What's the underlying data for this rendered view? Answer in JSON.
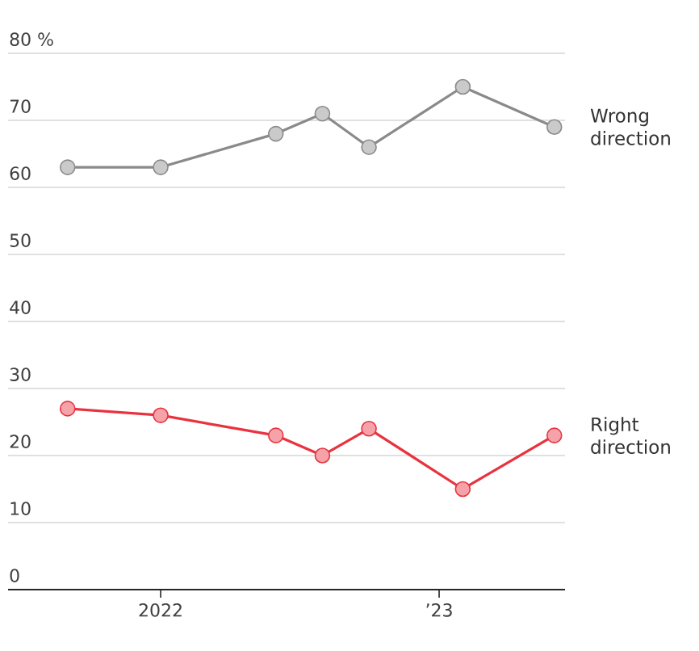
{
  "chart_data": {
    "type": "line",
    "x": [
      "2021-09-01",
      "2022-01-01",
      "2022-06-01",
      "2022-08-01",
      "2022-10-01",
      "2023-02-01",
      "2023-06-01"
    ],
    "series": [
      {
        "name": "Wrong direction",
        "color": "#8a8a8a",
        "values": [
          63,
          63,
          68,
          71,
          66,
          75,
          69
        ]
      },
      {
        "name": "Right direction",
        "color": "#e8333f",
        "values": [
          27,
          26,
          23,
          20,
          24,
          15,
          23
        ]
      }
    ],
    "xlim": [
      "2021-06-15",
      "2023-06-15"
    ],
    "xticks": [
      {
        "value": "2022-01-01",
        "label": "2022"
      },
      {
        "value": "2023-01-01",
        "label": "’23"
      }
    ],
    "ylim": [
      0,
      80
    ],
    "yticks": [
      0,
      10,
      20,
      30,
      40,
      50,
      60,
      70,
      {
        "value": 80,
        "label": "80 %"
      }
    ],
    "grid": "y",
    "marker": "circle",
    "line_style": "solid"
  }
}
